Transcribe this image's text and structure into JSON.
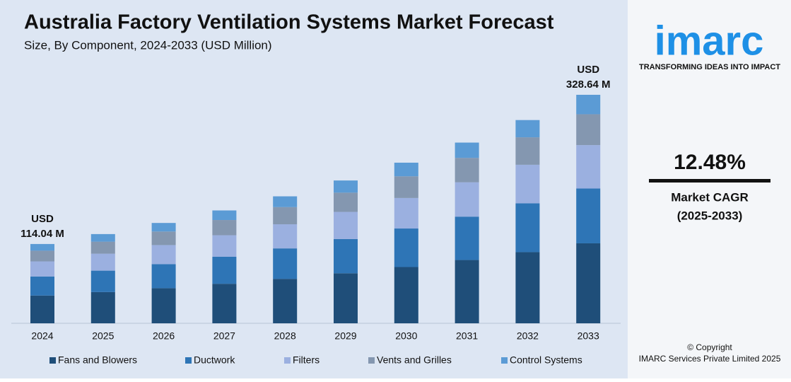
{
  "chart_data": {
    "type": "stacked_bar",
    "title": "Australia Factory Ventilation Systems Market Forecast",
    "subtitle": "Size, By Component, 2024-2033 (USD Million)",
    "categories": [
      "2024",
      "2025",
      "2026",
      "2027",
      "2028",
      "2029",
      "2030",
      "2031",
      "2032",
      "2033"
    ],
    "series": [
      {
        "name": "Fans and Blowers",
        "color": "#1f4e79",
        "values": [
          39.9,
          44.9,
          50.5,
          56.8,
          63.9,
          71.9,
          80.9,
          91.0,
          102.3,
          115.0
        ]
      },
      {
        "name": "Ductwork",
        "color": "#2e75b6",
        "values": [
          27.4,
          30.8,
          34.6,
          39.0,
          43.8,
          49.3,
          55.4,
          62.4,
          70.2,
          78.9
        ]
      },
      {
        "name": "Filters",
        "color": "#9bb0e0",
        "values": [
          21.7,
          24.4,
          27.4,
          30.8,
          34.7,
          39.0,
          43.9,
          49.4,
          55.5,
          62.4
        ]
      },
      {
        "name": "Vents and Grilles",
        "color": "#8497b0",
        "values": [
          15.4,
          17.3,
          19.5,
          21.9,
          24.7,
          27.7,
          31.2,
          35.1,
          39.5,
          44.4
        ]
      },
      {
        "name": "Control Systems",
        "color": "#5b9bd5",
        "values": [
          9.64,
          10.9,
          12.3,
          13.8,
          15.5,
          17.5,
          19.6,
          22.0,
          24.8,
          27.94
        ]
      }
    ],
    "annotations": [
      {
        "category": "2024",
        "lines": [
          "USD",
          "114.04 M"
        ]
      },
      {
        "category": "2033",
        "lines": [
          "USD",
          "328.64 M"
        ]
      }
    ]
  },
  "sidebar": {
    "logo": "imarc",
    "tagline": "TRANSFORMING IDEAS INTO IMPACT",
    "cagr": "12.48%",
    "cagr_label": "Market CAGR",
    "cagr_period": "(2025-2033)",
    "copyright": "© Copyright",
    "company": "IMARC Services Private Limited 2025"
  }
}
